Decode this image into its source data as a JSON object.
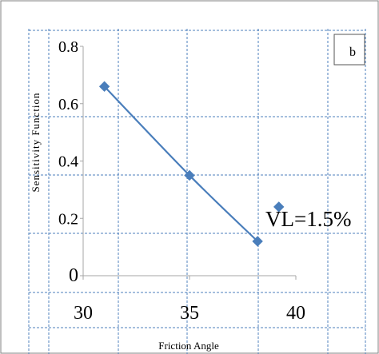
{
  "panel_label": "b",
  "annotation": "VL=1.5%",
  "colors": {
    "series": "#4a7ebb",
    "grid_dash": "#4f81bd",
    "axis": "#a6a6a6",
    "border": "#7f7f7f",
    "text": "#000000"
  },
  "chart_data": {
    "type": "line",
    "title": "",
    "xlabel": "Friction Angle",
    "ylabel": "Sensitivity Function",
    "xlim": [
      30,
      40
    ],
    "ylim": [
      0,
      0.8
    ],
    "xticks": [
      30,
      35,
      40
    ],
    "xtick_labels": [
      "30",
      "35",
      "40"
    ],
    "yticks": [
      0,
      0.2,
      0.4,
      0.6,
      0.8
    ],
    "ytick_labels": [
      "0",
      "0.2",
      "0.4",
      "0.6",
      "0.8"
    ],
    "series": [
      {
        "x": [
          31,
          35,
          38.2
        ],
        "y": [
          0.66,
          0.35,
          0.12
        ]
      }
    ],
    "extra_points": [
      {
        "x": 39.2,
        "y": 0.24
      }
    ],
    "grid": true,
    "legend": "none"
  }
}
